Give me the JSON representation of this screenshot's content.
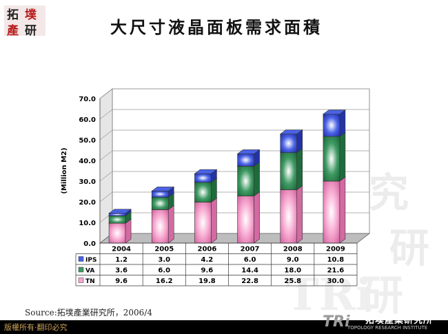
{
  "slide": {
    "title": "大尺寸液晶面板需求面積",
    "source": "Source:拓墣產業研究所，2006/4",
    "copyright": "版權所有‧翻印必究",
    "corner_logo_text": "拓墣產業研究",
    "footer_logo": {
      "mark": "TRi",
      "name": "拓墣產業研究所",
      "english": "TOPOLOGY RESEARCH INSTITUTE"
    }
  },
  "chart_data": {
    "type": "bar",
    "stacked": true,
    "ylabel": "(Million M2)",
    "ylim": [
      0,
      70
    ],
    "yticks": [
      "0.0",
      "10.0",
      "20.0",
      "30.0",
      "40.0",
      "50.0",
      "60.0",
      "70.0"
    ],
    "grid": true,
    "categories": [
      "2004",
      "2005",
      "2006",
      "2007",
      "2008",
      "2009"
    ],
    "series": [
      {
        "name": "TN",
        "values": [
          9.6,
          16.2,
          19.8,
          22.8,
          25.8,
          30.0
        ],
        "labels": [
          "9.6",
          "16.2",
          "19.8",
          "22.8",
          "25.8",
          "30.0"
        ],
        "color": "#f7a8d0"
      },
      {
        "name": "VA",
        "values": [
          3.6,
          6.0,
          9.6,
          14.4,
          18.0,
          21.6
        ],
        "labels": [
          "3.6",
          "6.0",
          "9.6",
          "14.4",
          "18.0",
          "21.6"
        ],
        "color": "#3f9a63"
      },
      {
        "name": "IPS",
        "values": [
          1.2,
          3.0,
          4.2,
          6.0,
          9.0,
          10.8
        ],
        "labels": [
          "1.2",
          "3.0",
          "4.2",
          "6.0",
          "9.0",
          "10.8"
        ],
        "color": "#4a62e6"
      }
    ],
    "table_order": [
      "IPS",
      "VA",
      "TN"
    ]
  }
}
